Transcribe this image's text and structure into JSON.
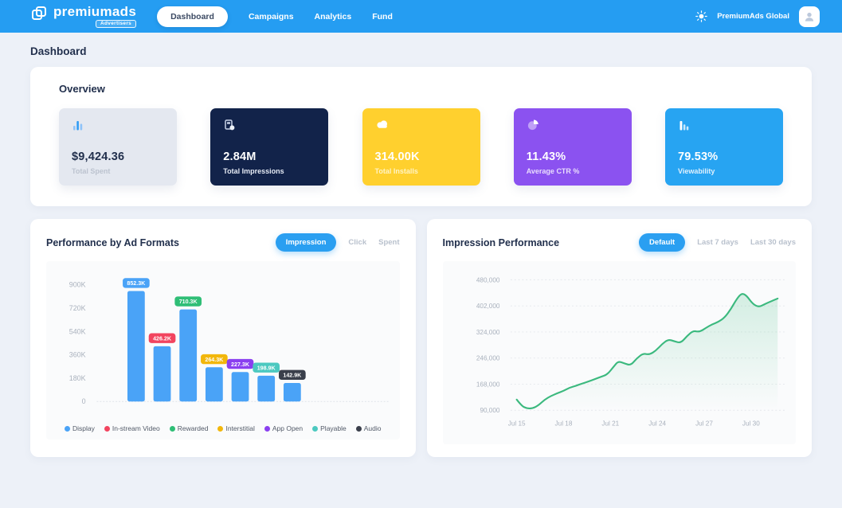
{
  "header": {
    "logo_text": "premiumads",
    "logo_badge": "Advertisers",
    "nav": [
      {
        "label": "Dashboard",
        "active": true
      },
      {
        "label": "Campaigns",
        "active": false
      },
      {
        "label": "Analytics",
        "active": false
      },
      {
        "label": "Fund",
        "active": false
      }
    ],
    "theme_icon": "sun-icon",
    "account_name": "PremiumAds Global",
    "accent_color": "#259df2"
  },
  "page": {
    "title": "Dashboard"
  },
  "overview": {
    "title": "Overview",
    "cards": [
      {
        "value": "$9,424.36",
        "label": "Total Spent",
        "icon": "spent-bars-icon",
        "bg": "#e4e8f0",
        "value_color": "#22304d",
        "label_color": "#bcc3cf"
      },
      {
        "value": "2.84M",
        "label": "Total Impressions",
        "icon": "impressions-icon",
        "bg": "#12234a",
        "value_color": "#ffffff",
        "label_color": "#e6ebf5"
      },
      {
        "value": "314.00K",
        "label": "Total Installs",
        "icon": "installs-cloud-icon",
        "bg": "#ffd02e",
        "value_color": "#ffffff",
        "label_color": "#fff3c4"
      },
      {
        "value": "11.43%",
        "label": "Average CTR %",
        "icon": "ctr-pie-icon",
        "bg": "#8b52f0",
        "value_color": "#ffffff",
        "label_color": "#e9ddfd"
      },
      {
        "value": "79.53%",
        "label": "Viewability",
        "icon": "viewability-bars-icon",
        "bg": "#27a4f2",
        "value_color": "#ffffff",
        "label_color": "#dff0fd"
      }
    ]
  },
  "panels": {
    "ad_formats": {
      "title": "Performance by Ad Formats",
      "toggles": [
        {
          "label": "Impression",
          "active": true
        },
        {
          "label": "Click",
          "active": false
        },
        {
          "label": "Spent",
          "active": false
        }
      ]
    },
    "impression_performance": {
      "title": "Impression Performance",
      "toggles": [
        {
          "label": "Default",
          "active": true
        },
        {
          "label": "Last 7 days",
          "active": false
        },
        {
          "label": "Last 30 days",
          "active": false
        }
      ]
    }
  },
  "chart_data": [
    {
      "type": "bar",
      "title": "Performance by Ad Formats",
      "metric": "Impression",
      "categories": [
        "Display",
        "In-stream Video",
        "Rewarded",
        "Interstitial",
        "App Open",
        "Playable",
        "Audio"
      ],
      "values": [
        852300,
        426200,
        710300,
        264300,
        227300,
        198900,
        142900
      ],
      "value_labels": [
        "852.3K",
        "426.2K",
        "710.3K",
        "264.3K",
        "227.3K",
        "198.9K",
        "142.9K"
      ],
      "bar_color": "#4aa3f7",
      "label_colors": [
        "#4aa3f7",
        "#f2445f",
        "#2fbe76",
        "#f2b70c",
        "#8a3ff0",
        "#4cc9c0",
        "#3a3f4b"
      ],
      "yticks": [
        {
          "label": "900K",
          "value": 900000
        },
        {
          "label": "720K",
          "value": 720000
        },
        {
          "label": "540K",
          "value": 540000
        },
        {
          "label": "360K",
          "value": 360000
        },
        {
          "label": "180K",
          "value": 180000
        },
        {
          "label": "0",
          "value": 0
        }
      ],
      "ylim": [
        0,
        900000
      ],
      "grid": false,
      "legend_position": "bottom"
    },
    {
      "type": "line",
      "title": "Impression Performance",
      "line_color": "#3bb97e",
      "area_fill": "green gradient fading to transparent",
      "grid": "dashed horizontal",
      "yticks": [
        {
          "label": "480,000",
          "value": 480000
        },
        {
          "label": "402,000",
          "value": 402000
        },
        {
          "label": "324,000",
          "value": 324000
        },
        {
          "label": "246,000",
          "value": 246000
        },
        {
          "label": "168,000",
          "value": 168000
        },
        {
          "label": "90,000",
          "value": 90000
        }
      ],
      "ylim": [
        90000,
        480000
      ],
      "xticks": [
        "Jul 15",
        "Jul 18",
        "Jul 21",
        "Jul 24",
        "Jul 27",
        "Jul 30"
      ],
      "points": [
        [
          15,
          122000
        ],
        [
          15.3,
          104000
        ],
        [
          15.6,
          96000
        ],
        [
          16,
          95000
        ],
        [
          16.4,
          105000
        ],
        [
          16.8,
          122000
        ],
        [
          17.2,
          133000
        ],
        [
          17.6,
          141000
        ],
        [
          18,
          148000
        ],
        [
          18.4,
          158000
        ],
        [
          18.8,
          163000
        ],
        [
          19.2,
          170000
        ],
        [
          19.6,
          176000
        ],
        [
          20,
          183000
        ],
        [
          20.4,
          190000
        ],
        [
          20.8,
          197000
        ],
        [
          21.2,
          220000
        ],
        [
          21.5,
          237000
        ],
        [
          21.9,
          230000
        ],
        [
          22.3,
          224000
        ],
        [
          22.7,
          246000
        ],
        [
          23.1,
          260000
        ],
        [
          23.5,
          256000
        ],
        [
          23.9,
          268000
        ],
        [
          24.3,
          288000
        ],
        [
          24.7,
          302000
        ],
        [
          25.1,
          296000
        ],
        [
          25.5,
          291000
        ],
        [
          25.9,
          312000
        ],
        [
          26.3,
          328000
        ],
        [
          26.7,
          324000
        ],
        [
          27.1,
          336000
        ],
        [
          27.5,
          347000
        ],
        [
          27.9,
          354000
        ],
        [
          28.3,
          367000
        ],
        [
          28.7,
          392000
        ],
        [
          29.1,
          424000
        ],
        [
          29.4,
          440000
        ],
        [
          29.7,
          434000
        ],
        [
          30.1,
          408000
        ],
        [
          30.5,
          398000
        ],
        [
          30.9,
          408000
        ],
        [
          31.3,
          416000
        ],
        [
          31.7,
          424000
        ]
      ]
    }
  ]
}
